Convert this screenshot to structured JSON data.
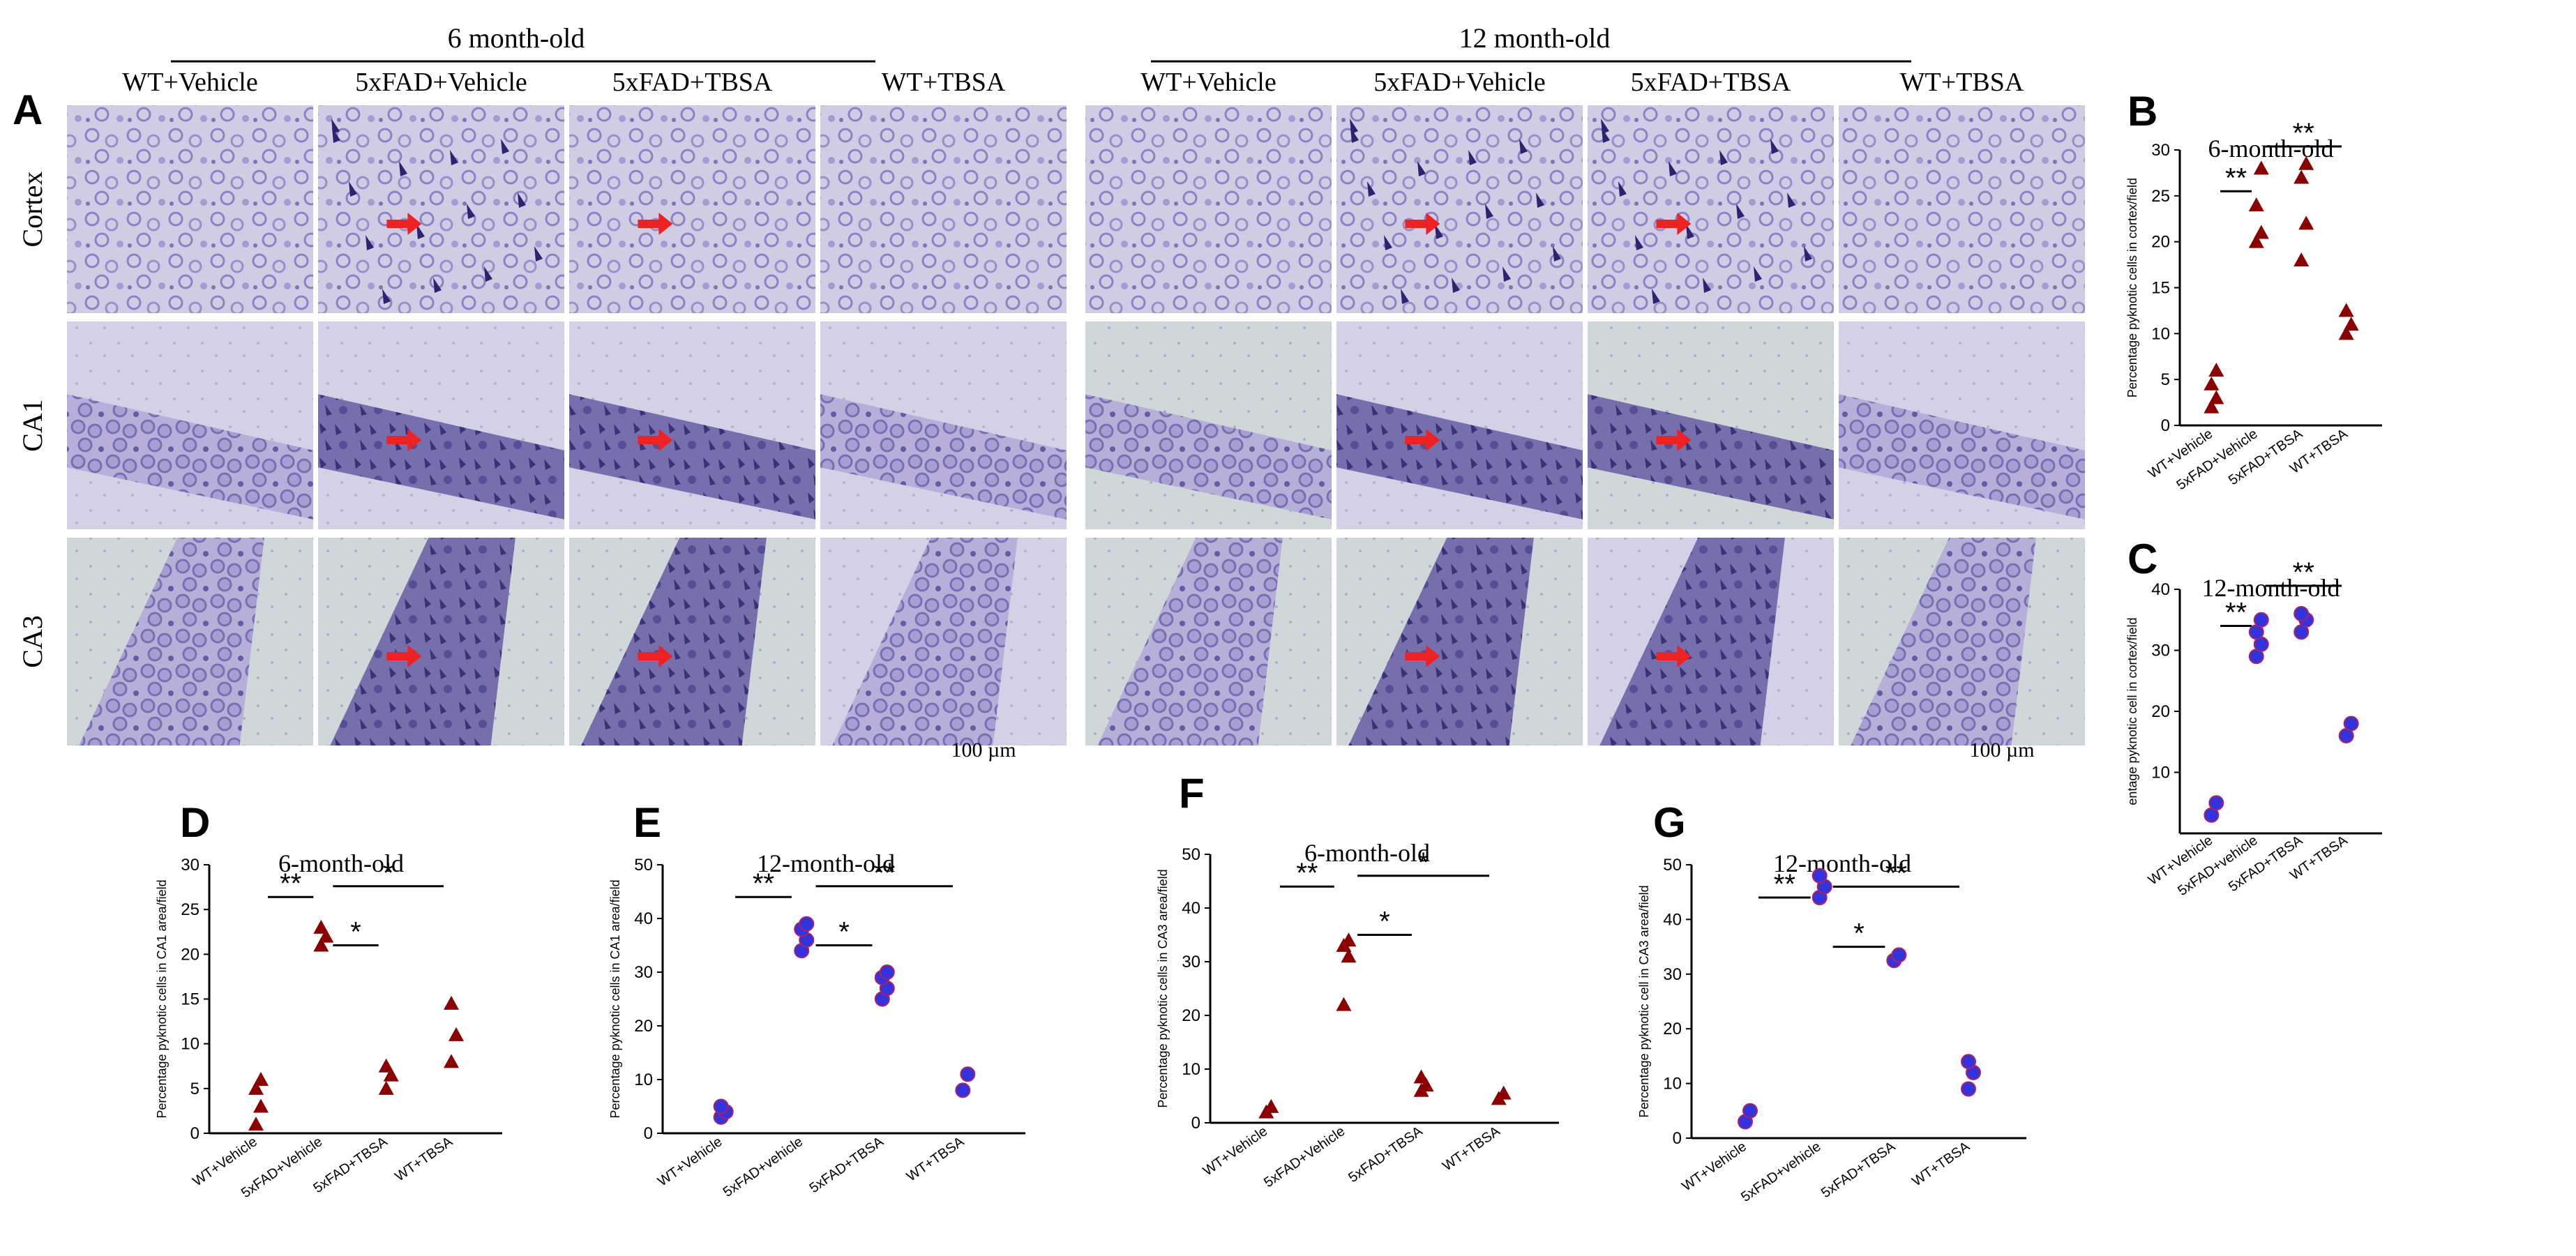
{
  "panel_letters": [
    "A",
    "B",
    "C",
    "D",
    "E",
    "F",
    "G"
  ],
  "group_headers": [
    "6 month-old",
    "12 month-old"
  ],
  "condition_labels": [
    "WT+Vehicle",
    "5xFAD+Vehicle",
    "5xFAD+TBSA",
    "WT+TBSA"
  ],
  "region_labels": [
    "Cortex",
    "CA1",
    "CA3"
  ],
  "scale_bar": "100 µm",
  "colors": {
    "triangle": "#8b0000",
    "dot_fill": "#3333dd",
    "dot_edge": "#aa2266",
    "arrow": "#ee2222",
    "stain_light": "#c4c0de",
    "stain_dark": "#3a2f80"
  },
  "chart_data": [
    {
      "panel": "B",
      "type": "scatter",
      "title": "6-month-old",
      "marker": "triangle",
      "ylabel": "Percentage pyknotic cells in cortex/field",
      "categories": [
        "WT+Vehicle",
        "5xFAD+Vehicle",
        "5xFAD+TBSA",
        "WT+TBSA"
      ],
      "ylim": [
        0,
        30
      ],
      "yticks": [
        "0",
        "5",
        "10",
        "15",
        "20",
        "25",
        "30"
      ],
      "series": [
        {
          "category": "WT+Vehicle",
          "values": [
            2,
            3,
            4.5,
            6
          ]
        },
        {
          "category": "5xFAD+Vehicle",
          "values": [
            20,
            21,
            24,
            28
          ]
        },
        {
          "category": "5xFAD+TBSA",
          "values": [
            18,
            22,
            27,
            28.5
          ]
        },
        {
          "category": "WT+TBSA",
          "values": [
            10,
            11,
            12.5
          ]
        }
      ],
      "significance": [
        {
          "label": "**",
          "from": 0,
          "to": 1,
          "level": 0
        },
        {
          "label": "**",
          "from": 1,
          "to": 3,
          "level": 1
        }
      ]
    },
    {
      "panel": "C",
      "type": "scatter",
      "title": "12-month-old",
      "marker": "dot",
      "ylabel": "entage pyknotic cell in cortex/field",
      "categories": [
        "WT+Vehicle",
        "5xFAD+vehicle",
        "5xFAD+TBSA",
        "WT+TBSA"
      ],
      "ylim": [
        0,
        40
      ],
      "yticks": [
        "10",
        "20",
        "30",
        "40"
      ],
      "series": [
        {
          "category": "WT+Vehicle",
          "values": [
            3,
            5
          ]
        },
        {
          "category": "5xFAD+vehicle",
          "values": [
            29,
            31,
            33,
            35
          ]
        },
        {
          "category": "5xFAD+TBSA",
          "values": [
            33,
            35,
            36
          ]
        },
        {
          "category": "WT+TBSA",
          "values": [
            16,
            18
          ]
        }
      ],
      "significance": [
        {
          "label": "**",
          "from": 0,
          "to": 1,
          "level": 0
        },
        {
          "label": "**",
          "from": 1,
          "to": 3,
          "level": 1
        }
      ]
    },
    {
      "panel": "D",
      "type": "scatter",
      "title": "6-month-old",
      "marker": "triangle",
      "ylabel": "Percentage pyknotic cells in CA1 area/field",
      "categories": [
        "WT+Vehicle",
        "5xFAD+Vehicle",
        "5xFAD+TBSA",
        "WT+TBSA"
      ],
      "ylim": [
        0,
        30
      ],
      "yticks": [
        "0",
        "5",
        "10",
        "15",
        "20",
        "25",
        "30"
      ],
      "series": [
        {
          "category": "WT+Vehicle",
          "values": [
            1,
            3,
            5,
            6
          ]
        },
        {
          "category": "5xFAD+Vehicle",
          "values": [
            21,
            22,
            23
          ]
        },
        {
          "category": "5xFAD+TBSA",
          "values": [
            5,
            6.5,
            7.5
          ]
        },
        {
          "category": "WT+TBSA",
          "values": [
            8,
            11,
            14.5
          ]
        }
      ],
      "significance": [
        {
          "label": "**",
          "from": 0,
          "to": 1,
          "level": 0
        },
        {
          "label": "*",
          "from": 1,
          "to": 2,
          "level": 1
        },
        {
          "label": "*",
          "from": 1,
          "to": 3,
          "level": 2
        }
      ]
    },
    {
      "panel": "E",
      "type": "scatter",
      "title": "12-month-old",
      "marker": "dot",
      "ylabel": "Percentage pyknotic cells in CA1 area/field",
      "categories": [
        "WT+Vehicle",
        "5xFAD+vehicle",
        "5xFAD+TBSA",
        "WT+TBSA"
      ],
      "ylim": [
        0,
        50
      ],
      "yticks": [
        "0",
        "10",
        "20",
        "30",
        "40",
        "50"
      ],
      "series": [
        {
          "category": "WT+Vehicle",
          "values": [
            3,
            4,
            5
          ]
        },
        {
          "category": "5xFAD+vehicle",
          "values": [
            34,
            36,
            38,
            39
          ]
        },
        {
          "category": "5xFAD+TBSA",
          "values": [
            25,
            27,
            29,
            30
          ]
        },
        {
          "category": "WT+TBSA",
          "values": [
            8,
            11
          ]
        }
      ],
      "significance": [
        {
          "label": "**",
          "from": 0,
          "to": 1,
          "level": 0
        },
        {
          "label": "*",
          "from": 1,
          "to": 2,
          "level": 1
        },
        {
          "label": "**",
          "from": 1,
          "to": 3,
          "level": 2
        }
      ]
    },
    {
      "panel": "F",
      "type": "scatter",
      "title": "6-month-old",
      "marker": "triangle",
      "ylabel": "Percentage pyknotic cells in CA3 area/field",
      "categories": [
        "WT+Vehicle",
        "5xFAD+Vehicle",
        "5xFAD+TBSA",
        "WT+TBSA"
      ],
      "ylim": [
        0,
        50
      ],
      "yticks": [
        "0",
        "10",
        "20",
        "30",
        "40",
        "50"
      ],
      "series": [
        {
          "category": "WT+Vehicle",
          "values": [
            2,
            3
          ]
        },
        {
          "category": "5xFAD+Vehicle",
          "values": [
            22,
            31,
            33,
            34
          ]
        },
        {
          "category": "5xFAD+TBSA",
          "values": [
            6,
            7,
            8.5
          ]
        },
        {
          "category": "WT+TBSA",
          "values": [
            4.5,
            5.5
          ]
        }
      ],
      "significance": [
        {
          "label": "**",
          "from": 0,
          "to": 1,
          "level": 0
        },
        {
          "label": "*",
          "from": 1,
          "to": 2,
          "level": 1
        },
        {
          "label": "*",
          "from": 1,
          "to": 3,
          "level": 2
        }
      ]
    },
    {
      "panel": "G",
      "type": "scatter",
      "title": "12-month-old",
      "marker": "dot",
      "ylabel": "Percentage pyknotic cell in CA3 area/field",
      "categories": [
        "WT+Vehicle",
        "5xFAD+vehicle",
        "5xFAD+TBSA",
        "WT+TBSA"
      ],
      "ylim": [
        0,
        50
      ],
      "yticks": [
        "0",
        "10",
        "20",
        "30",
        "40",
        "50"
      ],
      "series": [
        {
          "category": "WT+Vehicle",
          "values": [
            3,
            5
          ]
        },
        {
          "category": "5xFAD+vehicle",
          "values": [
            44,
            46,
            48
          ]
        },
        {
          "category": "5xFAD+TBSA",
          "values": [
            32.5,
            33.5
          ]
        },
        {
          "category": "WT+TBSA",
          "values": [
            9,
            12,
            14
          ]
        }
      ],
      "significance": [
        {
          "label": "**",
          "from": 0,
          "to": 1,
          "level": 0
        },
        {
          "label": "*",
          "from": 1,
          "to": 2,
          "level": 1
        },
        {
          "label": "**",
          "from": 1,
          "to": 3,
          "level": 2
        }
      ]
    }
  ]
}
